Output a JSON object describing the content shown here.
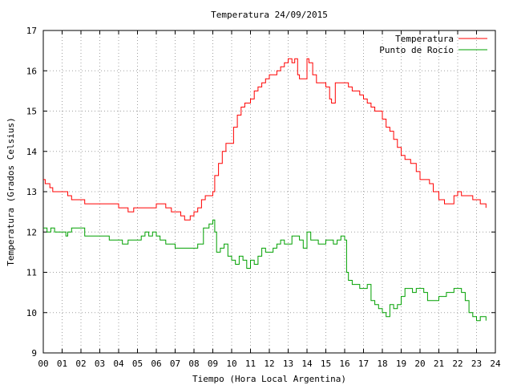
{
  "chart_data": {
    "type": "line",
    "title": "Temperatura 24/09/2015",
    "xlabel": "Tiempo (Hora Local Argentina)",
    "ylabel": "Temperatura (Grados Celsius)",
    "xlim": [
      0,
      24
    ],
    "ylim": [
      9,
      17
    ],
    "grid": true,
    "legend_position": "top-right",
    "x_ticks": [
      "00",
      "01",
      "02",
      "03",
      "04",
      "05",
      "06",
      "07",
      "08",
      "09",
      "10",
      "11",
      "12",
      "13",
      "14",
      "15",
      "16",
      "17",
      "18",
      "19",
      "20",
      "21",
      "22",
      "23",
      "24"
    ],
    "y_ticks": [
      "9",
      "10",
      "11",
      "12",
      "13",
      "14",
      "15",
      "16",
      "17"
    ],
    "series": [
      {
        "name": "Temperatura",
        "color": "#ff0000",
        "x": [
          0,
          0.1,
          0.2,
          0.35,
          0.5,
          1.0,
          1.3,
          1.5,
          2.0,
          2.2,
          3.0,
          3.5,
          4.0,
          4.3,
          4.5,
          4.8,
          5.0,
          5.3,
          5.5,
          5.8,
          6.0,
          6.3,
          6.5,
          6.8,
          7.0,
          7.3,
          7.5,
          7.8,
          8.0,
          8.2,
          8.4,
          8.6,
          8.8,
          9.0,
          9.1,
          9.3,
          9.5,
          9.7,
          9.9,
          10.1,
          10.3,
          10.5,
          10.7,
          11.0,
          11.2,
          11.4,
          11.6,
          11.8,
          12.0,
          12.2,
          12.4,
          12.6,
          12.8,
          13.0,
          13.2,
          13.35,
          13.5,
          13.6,
          13.8,
          14.0,
          14.1,
          14.3,
          14.5,
          14.7,
          14.8,
          15.0,
          15.2,
          15.3,
          15.5,
          15.7,
          15.8,
          16.0,
          16.2,
          16.4,
          16.6,
          16.8,
          17.0,
          17.2,
          17.4,
          17.6,
          17.8,
          18.0,
          18.2,
          18.4,
          18.6,
          18.8,
          19.0,
          19.2,
          19.5,
          19.8,
          20.0,
          20.3,
          20.5,
          20.7,
          21.0,
          21.3,
          21.5,
          21.8,
          22.0,
          22.2,
          22.4,
          22.6,
          22.8,
          23.0,
          23.2,
          23.4,
          23.5
        ],
        "values": [
          13.3,
          13.2,
          13.2,
          13.1,
          13.0,
          13.0,
          12.9,
          12.8,
          12.8,
          12.7,
          12.7,
          12.7,
          12.6,
          12.6,
          12.5,
          12.6,
          12.6,
          12.6,
          12.6,
          12.6,
          12.7,
          12.7,
          12.6,
          12.5,
          12.5,
          12.4,
          12.3,
          12.4,
          12.5,
          12.6,
          12.8,
          12.9,
          12.9,
          13.0,
          13.4,
          13.7,
          14.0,
          14.2,
          14.2,
          14.6,
          14.9,
          15.1,
          15.2,
          15.3,
          15.5,
          15.6,
          15.7,
          15.8,
          15.9,
          15.9,
          16.0,
          16.1,
          16.2,
          16.3,
          16.2,
          16.3,
          15.9,
          15.8,
          15.8,
          16.3,
          16.2,
          15.9,
          15.7,
          15.7,
          15.7,
          15.6,
          15.3,
          15.2,
          15.7,
          15.7,
          15.7,
          15.7,
          15.6,
          15.5,
          15.5,
          15.4,
          15.3,
          15.2,
          15.1,
          15.0,
          15.0,
          14.8,
          14.6,
          14.5,
          14.3,
          14.1,
          13.9,
          13.8,
          13.7,
          13.5,
          13.3,
          13.3,
          13.2,
          13.0,
          12.8,
          12.7,
          12.7,
          12.9,
          13.0,
          12.9,
          12.9,
          12.9,
          12.8,
          12.8,
          12.7,
          12.7,
          12.6
        ]
      },
      {
        "name": "Punto de Rocío",
        "color": "#00a000",
        "x": [
          0,
          0.2,
          0.4,
          0.6,
          0.8,
          1.0,
          1.2,
          1.3,
          1.5,
          2.0,
          2.2,
          2.5,
          3.0,
          3.5,
          4.0,
          4.2,
          4.5,
          5.0,
          5.2,
          5.4,
          5.6,
          5.8,
          6.0,
          6.2,
          6.5,
          7.0,
          7.5,
          8.0,
          8.2,
          8.5,
          8.8,
          9.0,
          9.1,
          9.2,
          9.4,
          9.6,
          9.8,
          10.0,
          10.2,
          10.4,
          10.6,
          10.8,
          11.0,
          11.2,
          11.4,
          11.6,
          11.8,
          12.0,
          12.2,
          12.4,
          12.6,
          12.8,
          13.0,
          13.2,
          13.4,
          13.6,
          13.8,
          14.0,
          14.2,
          14.4,
          14.6,
          14.8,
          15.0,
          15.2,
          15.4,
          15.6,
          15.8,
          16.0,
          16.1,
          16.2,
          16.4,
          16.6,
          16.8,
          17.0,
          17.2,
          17.4,
          17.6,
          17.8,
          18.0,
          18.2,
          18.4,
          18.6,
          18.8,
          19.0,
          19.2,
          19.4,
          19.6,
          19.8,
          20.0,
          20.2,
          20.4,
          20.6,
          20.8,
          21.0,
          21.2,
          21.4,
          21.6,
          21.8,
          22.0,
          22.2,
          22.4,
          22.6,
          22.8,
          23.0,
          23.2,
          23.4,
          23.5
        ],
        "values": [
          12.1,
          12.0,
          12.1,
          12.0,
          12.0,
          12.0,
          11.9,
          12.0,
          12.1,
          12.1,
          11.9,
          11.9,
          11.9,
          11.8,
          11.8,
          11.7,
          11.8,
          11.8,
          11.9,
          12.0,
          11.9,
          12.0,
          11.9,
          11.8,
          11.7,
          11.6,
          11.6,
          11.6,
          11.7,
          12.1,
          12.2,
          12.3,
          12.0,
          11.5,
          11.6,
          11.7,
          11.4,
          11.3,
          11.2,
          11.4,
          11.3,
          11.1,
          11.3,
          11.2,
          11.4,
          11.6,
          11.5,
          11.5,
          11.6,
          11.7,
          11.8,
          11.7,
          11.7,
          11.9,
          11.9,
          11.8,
          11.6,
          12.0,
          11.8,
          11.8,
          11.7,
          11.7,
          11.8,
          11.8,
          11.7,
          11.8,
          11.9,
          11.8,
          11.0,
          10.8,
          10.7,
          10.7,
          10.6,
          10.6,
          10.7,
          10.3,
          10.2,
          10.1,
          10.0,
          9.9,
          10.2,
          10.1,
          10.2,
          10.4,
          10.6,
          10.6,
          10.5,
          10.6,
          10.6,
          10.5,
          10.3,
          10.3,
          10.3,
          10.4,
          10.4,
          10.5,
          10.5,
          10.6,
          10.6,
          10.5,
          10.3,
          10.0,
          9.9,
          9.8,
          9.9,
          9.9,
          9.8
        ]
      }
    ]
  }
}
